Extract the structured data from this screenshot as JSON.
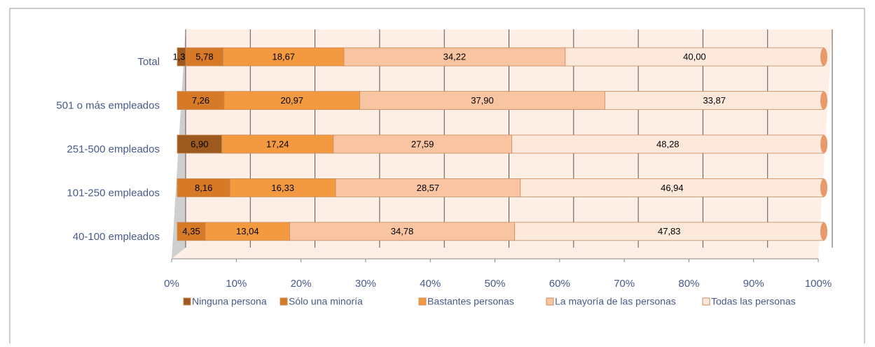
{
  "chart_data": {
    "type": "stacked_barh",
    "categories": [
      "Total",
      "501 o más  empleados",
      "251-500 empleados",
      "101-250 empleados",
      "40-100 empleados"
    ],
    "series": [
      {
        "name": "Ninguna persona",
        "color": "#9c5a1e",
        "values": [
          1.33,
          0,
          6.9,
          0,
          0
        ],
        "value_labels": [
          "1,33",
          null,
          "6,90",
          null,
          null
        ]
      },
      {
        "name": "Sólo una minoría",
        "color": "#d67a28",
        "values": [
          5.78,
          7.26,
          0,
          8.16,
          4.35
        ],
        "value_labels": [
          "5,78",
          "7,26",
          null,
          "8,16",
          "4,35"
        ]
      },
      {
        "name": "Bastantes personas",
        "color": "#f39a40",
        "values": [
          18.67,
          20.97,
          17.24,
          16.33,
          13.04
        ],
        "value_labels": [
          "18,67",
          "20,97",
          "17,24",
          "16,33",
          "13,04"
        ]
      },
      {
        "name": "La mayoría de las personas",
        "color": "#f8c4a2",
        "values": [
          34.22,
          37.9,
          27.59,
          28.57,
          34.78
        ],
        "value_labels": [
          "34,22",
          "37,90",
          "27,59",
          "28,57",
          "34,78"
        ]
      },
      {
        "name": "Todas las personas",
        "color": "#fde9dc",
        "values": [
          40.0,
          33.87,
          48.28,
          46.94,
          47.83
        ],
        "value_labels": [
          "40,00",
          "33,87",
          "48,28",
          "46,94",
          "47,83"
        ]
      }
    ],
    "xlim": [
      0,
      100
    ],
    "xticks": [
      {
        "value": 0,
        "label": "0%"
      },
      {
        "value": 10,
        "label": "10%"
      },
      {
        "value": 20,
        "label": "20%"
      },
      {
        "value": 30,
        "label": "30%"
      },
      {
        "value": 40,
        "label": "40%"
      },
      {
        "value": 50,
        "label": "50%"
      },
      {
        "value": 60,
        "label": "60%"
      },
      {
        "value": 70,
        "label": "70%"
      },
      {
        "value": 80,
        "label": "80%"
      },
      {
        "value": 90,
        "label": "90%"
      },
      {
        "value": 100,
        "label": "100%"
      }
    ],
    "grid": true,
    "legend": "bottom"
  }
}
